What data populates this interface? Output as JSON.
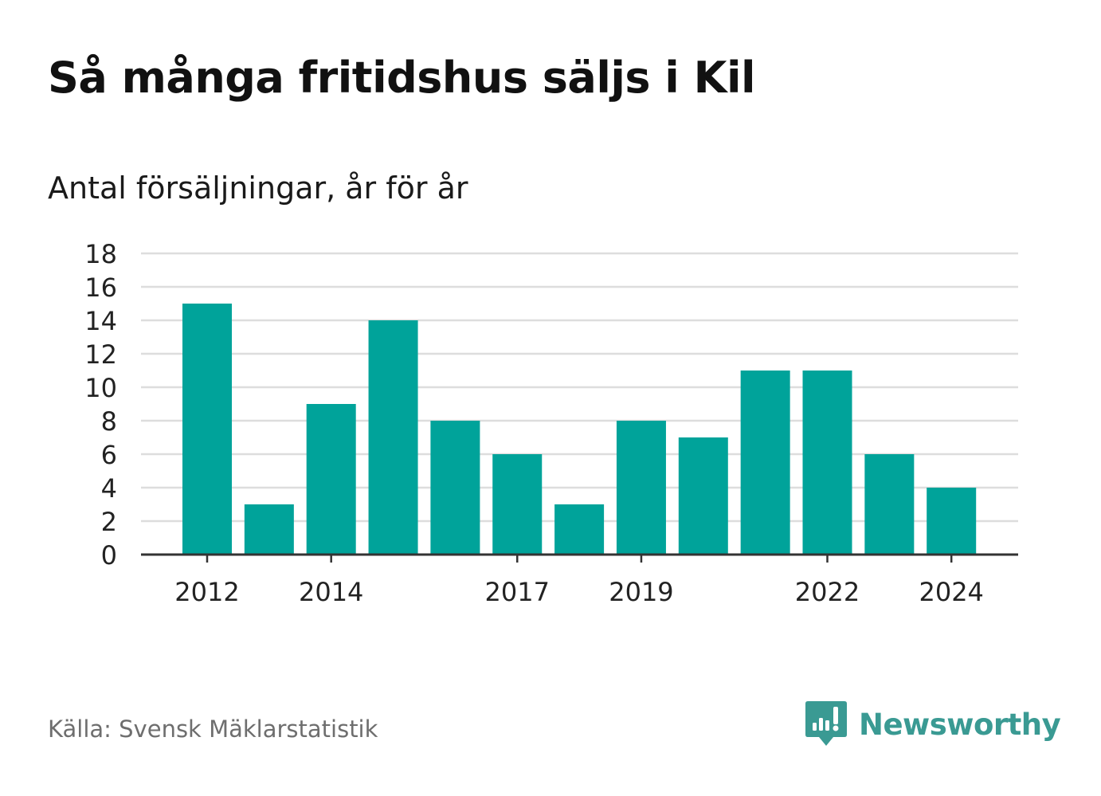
{
  "title": "Så många fritidshus säljs i Kil",
  "subtitle": "Antal försäljningar, år för år",
  "source": "Källa: Svensk Mäklarstatistik",
  "brand": {
    "name": "Newsworthy",
    "icon": "newsworthy-logo-icon"
  },
  "colors": {
    "bar": "#00a39a",
    "grid": "#dddddd",
    "axis": "#333333",
    "brand": "#3a9a93"
  },
  "chart_data": {
    "type": "bar",
    "categories": [
      "2012",
      "2013",
      "2014",
      "2015",
      "2016",
      "2017",
      "2018",
      "2019",
      "2020",
      "2021",
      "2022",
      "2023",
      "2024"
    ],
    "values": [
      15,
      3,
      9,
      14,
      8,
      6,
      3,
      8,
      7,
      11,
      11,
      6,
      4
    ],
    "x_tick_labels": [
      "2012",
      "2014",
      "2017",
      "2019",
      "2022",
      "2024"
    ],
    "y_ticks": [
      0,
      2,
      4,
      6,
      8,
      10,
      12,
      14,
      16,
      18
    ],
    "ylim": [
      0,
      18
    ],
    "xlabel": "",
    "ylabel": "",
    "grid": true,
    "legend": "none"
  }
}
